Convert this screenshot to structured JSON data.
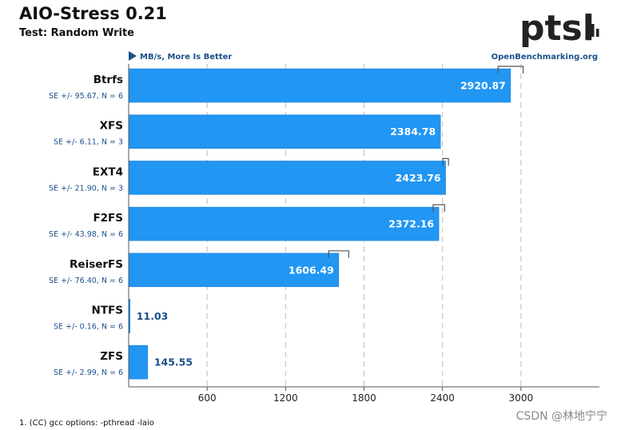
{
  "title": "AIO-Stress 0.21",
  "subtitle": "Test: Random Write",
  "unit_label": "MB/s, More Is Better",
  "source_label": "OpenBenchmarking.org",
  "logo_text": "ptsl",
  "footnote": "1. (CC) gcc options: -pthread -laio",
  "watermark": "CSDN @林地宁宁",
  "colors": {
    "bar": "#2196f3",
    "bar_edge": "#1976d2",
    "grid": "#bdbdbd",
    "axis": "#555555",
    "error": "#555555",
    "label_blue": "#1a4f8b"
  },
  "chart_data": {
    "type": "bar",
    "orientation": "horizontal",
    "categories": [
      "Btrfs",
      "XFS",
      "EXT4",
      "F2FS",
      "ReiserFS",
      "NTFS",
      "ZFS"
    ],
    "values": [
      2920.87,
      2384.78,
      2423.76,
      2372.16,
      1606.49,
      11.03,
      145.55
    ],
    "value_labels": [
      "2920.87",
      "2384.78",
      "2423.76",
      "2372.16",
      "1606.49",
      "11.03",
      "145.55"
    ],
    "errors": [
      95.67,
      6.11,
      21.9,
      43.98,
      76.4,
      0.16,
      2.99
    ],
    "se_labels": [
      "SE +/- 95.67, N = 6",
      "SE +/- 6.11, N = 3",
      "SE +/- 21.90, N = 3",
      "SE +/- 43.98, N = 6",
      "SE +/- 76.40, N = 6",
      "SE +/- 0.16, N = 6",
      "SE +/- 2.99, N = 6"
    ],
    "xticks": [
      600,
      1200,
      1800,
      2400,
      3000
    ],
    "xlim": [
      0,
      3600
    ],
    "grid": true,
    "xlabel": "",
    "ylabel": ""
  }
}
